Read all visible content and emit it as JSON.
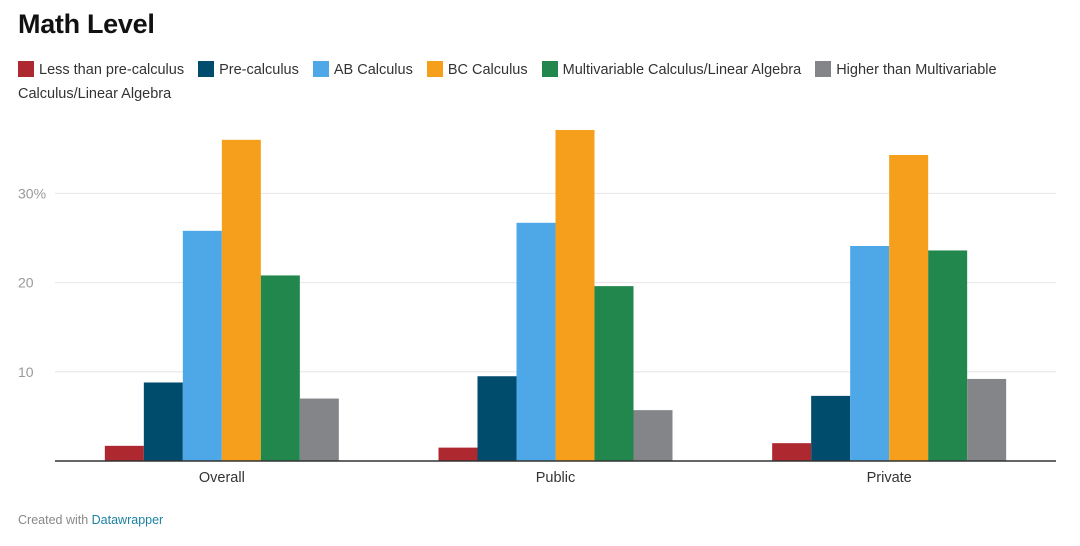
{
  "chart_data": {
    "type": "bar",
    "title": "Math Level",
    "categories": [
      "Overall",
      "Public",
      "Private"
    ],
    "series": [
      {
        "name": "Less than pre-calculus",
        "color": "#ad292f",
        "values": [
          1.7,
          1.5,
          2.0
        ]
      },
      {
        "name": "Pre-calculus",
        "color": "#004c6d",
        "values": [
          8.8,
          9.5,
          7.3
        ]
      },
      {
        "name": "AB Calculus",
        "color": "#4ea8e8",
        "values": [
          25.8,
          26.7,
          24.1
        ]
      },
      {
        "name": "BC Calculus",
        "color": "#f59f1c",
        "values": [
          36.0,
          37.1,
          34.3
        ]
      },
      {
        "name": "Multivariable Calculus/Linear Algebra",
        "color": "#21874c",
        "values": [
          20.8,
          19.6,
          23.6
        ]
      },
      {
        "name": "Higher than Multivariable Calculus/Linear Algebra",
        "color": "#838589",
        "values": [
          7.0,
          5.7,
          9.2
        ]
      }
    ],
    "yticks": [
      {
        "value": 10,
        "label": "10"
      },
      {
        "value": 20,
        "label": "20"
      },
      {
        "value": 30,
        "label": "30%"
      }
    ],
    "ylim": [
      0,
      37.1
    ],
    "xlabel": "",
    "ylabel": "",
    "grid": true,
    "legend_position": "top"
  },
  "footer": {
    "text": "Created with ",
    "link": "Datawrapper"
  }
}
